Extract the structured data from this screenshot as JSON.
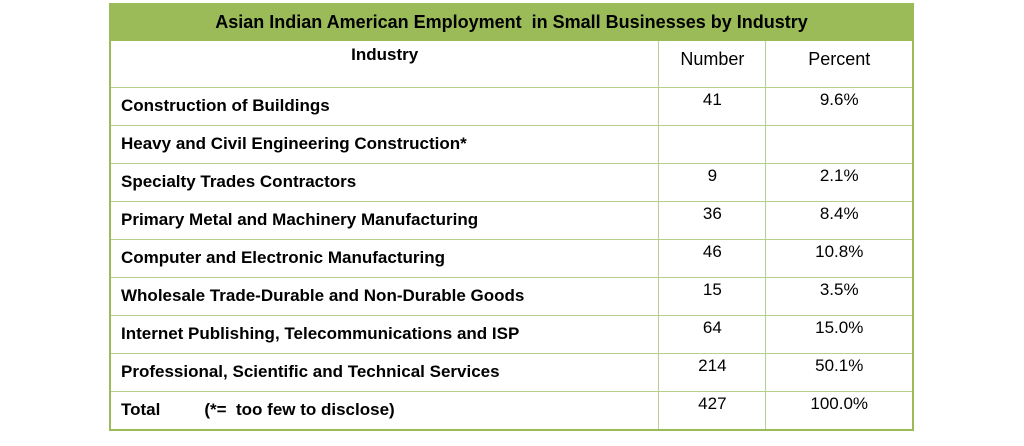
{
  "title": "Asian Indian American Employment  in Small Businesses by Industry",
  "table": {
    "columns": [
      "Industry",
      "Number",
      "Percent"
    ],
    "rows": [
      [
        "Construction of Buildings",
        "41",
        "9.6%"
      ],
      [
        "Heavy and Civil Engineering Construction*",
        null,
        null
      ],
      [
        "Specialty Trades Contractors",
        "9",
        "2.1%"
      ],
      [
        "Primary Metal and Machinery Manufacturing",
        "36",
        "8.4%"
      ],
      [
        "Computer and Electronic Manufacturing",
        "46",
        "10.8%"
      ],
      [
        "Wholesale Trade-Durable and Non-Durable Goods",
        "15",
        "3.5%"
      ],
      [
        "Internet Publishing, Telecommunications and ISP",
        "64",
        "15.0%"
      ],
      [
        "Professional, Scientific and Technical Services",
        "214",
        "50.1%"
      ]
    ],
    "total": {
      "label": "Total",
      "note": "(*=  too few to disclose)",
      "number": "427",
      "percent": "100.0%"
    }
  }
}
